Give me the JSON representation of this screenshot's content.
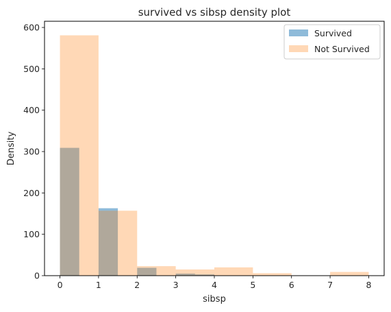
{
  "chart_data": {
    "type": "histogram",
    "title": "survived vs sibsp density plot",
    "xlabel": "sibsp",
    "ylabel": "Density",
    "xlim": [
      -0.4,
      8.4
    ],
    "ylim": [
      0,
      615
    ],
    "x_ticks": [
      0,
      1,
      2,
      3,
      4,
      5,
      6,
      7,
      8
    ],
    "y_ticks": [
      0,
      100,
      200,
      300,
      400,
      500,
      600
    ],
    "legend_position": "top-right",
    "series": [
      {
        "name": "Survived",
        "color": "#1f77b4",
        "opacity": 0.5,
        "bins": [
          {
            "x0": 0.0,
            "x1": 0.5,
            "value": 309
          },
          {
            "x0": 1.0,
            "x1": 1.5,
            "value": 163
          },
          {
            "x0": 2.0,
            "x1": 2.5,
            "value": 19
          },
          {
            "x0": 3.0,
            "x1": 3.5,
            "value": 5
          },
          {
            "x0": 3.5,
            "x1": 4.0,
            "value": 3
          }
        ]
      },
      {
        "name": "Not Survived",
        "color": "#ff7f0e",
        "opacity": 0.3,
        "bins": [
          {
            "x0": 0.0,
            "x1": 1.0,
            "value": 581
          },
          {
            "x0": 1.0,
            "x1": 2.0,
            "value": 157
          },
          {
            "x0": 2.0,
            "x1": 3.0,
            "value": 23
          },
          {
            "x0": 3.0,
            "x1": 4.0,
            "value": 15
          },
          {
            "x0": 4.0,
            "x1": 5.0,
            "value": 20
          },
          {
            "x0": 5.0,
            "x1": 6.0,
            "value": 6
          },
          {
            "x0": 7.0,
            "x1": 8.0,
            "value": 9
          }
        ]
      }
    ]
  }
}
